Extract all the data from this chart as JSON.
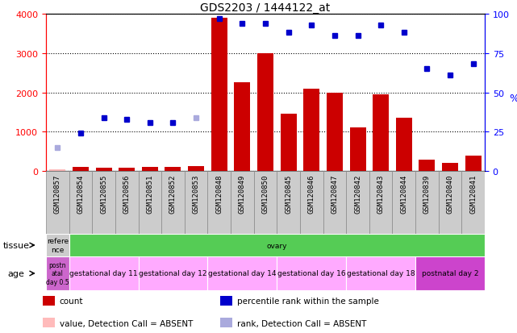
{
  "title": "GDS2203 / 1444122_at",
  "samples": [
    "GSM120857",
    "GSM120854",
    "GSM120855",
    "GSM120856",
    "GSM120851",
    "GSM120852",
    "GSM120853",
    "GSM120848",
    "GSM120849",
    "GSM120850",
    "GSM120845",
    "GSM120846",
    "GSM120847",
    "GSM120842",
    "GSM120843",
    "GSM120844",
    "GSM120839",
    "GSM120840",
    "GSM120841"
  ],
  "count_values": [
    50,
    100,
    80,
    80,
    100,
    100,
    130,
    3900,
    2250,
    3000,
    1450,
    2100,
    2000,
    1100,
    1950,
    1350,
    280,
    200,
    380
  ],
  "count_absent": [
    true,
    false,
    false,
    false,
    false,
    false,
    false,
    false,
    false,
    false,
    false,
    false,
    false,
    false,
    false,
    false,
    false,
    false,
    false
  ],
  "rank_values": [
    15,
    24,
    34,
    33,
    31,
    31,
    34,
    97,
    94,
    94,
    88,
    93,
    86,
    86,
    93,
    88,
    65,
    61,
    68
  ],
  "rank_absent": [
    true,
    false,
    false,
    false,
    false,
    false,
    true,
    false,
    false,
    false,
    false,
    false,
    false,
    false,
    false,
    false,
    false,
    false,
    false
  ],
  "ylim_left": [
    0,
    4000
  ],
  "ylim_right": [
    0,
    100
  ],
  "yticks_left": [
    0,
    1000,
    2000,
    3000,
    4000
  ],
  "yticks_right": [
    0,
    25,
    50,
    75,
    100
  ],
  "bar_color_present": "#cc0000",
  "bar_color_absent": "#ffbbbb",
  "dot_color_present": "#0000cc",
  "dot_color_absent": "#aaaadd",
  "tissue_groups": [
    {
      "label": "refere\nnce",
      "start": 0,
      "end": 1,
      "color": "#cccccc"
    },
    {
      "label": "ovary",
      "start": 1,
      "end": 19,
      "color": "#55cc55"
    }
  ],
  "age_groups": [
    {
      "label": "postn\natal\nday 0.5",
      "start": 0,
      "end": 1,
      "color": "#cc66cc"
    },
    {
      "label": "gestational day 11",
      "start": 1,
      "end": 4,
      "color": "#ffaaff"
    },
    {
      "label": "gestational day 12",
      "start": 4,
      "end": 7,
      "color": "#ffaaff"
    },
    {
      "label": "gestational day 14",
      "start": 7,
      "end": 10,
      "color": "#ffaaff"
    },
    {
      "label": "gestational day 16",
      "start": 10,
      "end": 13,
      "color": "#ffaaff"
    },
    {
      "label": "gestational day 18",
      "start": 13,
      "end": 16,
      "color": "#ffaaff"
    },
    {
      "label": "postnatal day 2",
      "start": 16,
      "end": 19,
      "color": "#cc44cc"
    }
  ],
  "legend_items": [
    {
      "color": "#cc0000",
      "label": "count"
    },
    {
      "color": "#0000cc",
      "label": "percentile rank within the sample"
    },
    {
      "color": "#ffbbbb",
      "label": "value, Detection Call = ABSENT"
    },
    {
      "color": "#aaaadd",
      "label": "rank, Detection Call = ABSENT"
    }
  ],
  "plot_bg": "#ffffff",
  "fig_bg": "#ffffff",
  "sample_box_color": "#cccccc",
  "sample_box_border": "#888888"
}
